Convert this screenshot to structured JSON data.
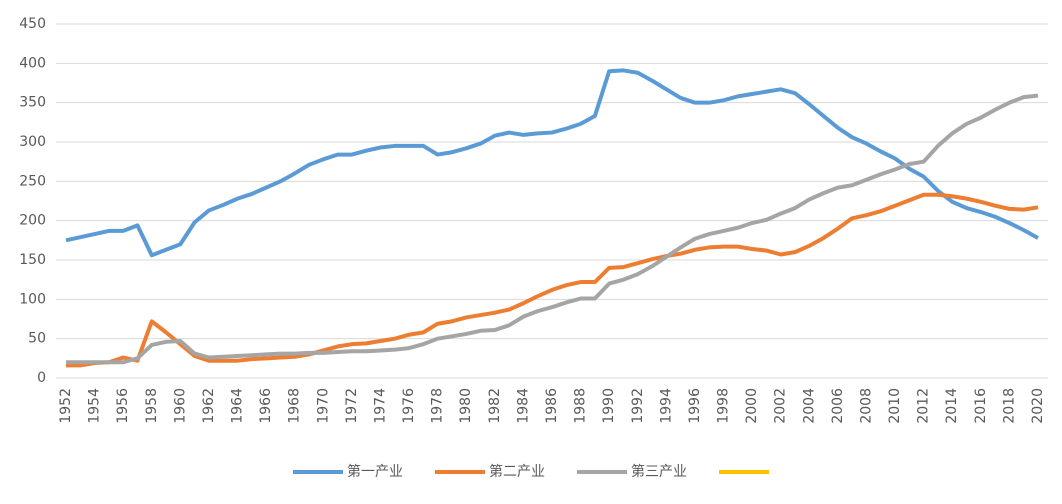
{
  "chart_data": {
    "type": "line",
    "x": [
      1952,
      1953,
      1954,
      1955,
      1956,
      1957,
      1958,
      1959,
      1960,
      1961,
      1962,
      1963,
      1964,
      1965,
      1966,
      1967,
      1968,
      1969,
      1970,
      1971,
      1972,
      1973,
      1974,
      1975,
      1976,
      1977,
      1978,
      1979,
      1980,
      1981,
      1982,
      1983,
      1984,
      1985,
      1986,
      1987,
      1988,
      1989,
      1990,
      1991,
      1992,
      1993,
      1994,
      1995,
      1996,
      1997,
      1998,
      1999,
      2000,
      2001,
      2002,
      2003,
      2004,
      2005,
      2006,
      2007,
      2008,
      2009,
      2010,
      2011,
      2012,
      2013,
      2014,
      2015,
      2016,
      2017,
      2018,
      2019,
      2020
    ],
    "xlim": [
      1952,
      2020
    ],
    "xticks": [
      1952,
      1954,
      1956,
      1958,
      1960,
      1962,
      1964,
      1966,
      1968,
      1970,
      1972,
      1974,
      1976,
      1978,
      1980,
      1982,
      1984,
      1986,
      1988,
      1990,
      1992,
      1994,
      1996,
      1998,
      2000,
      2002,
      2004,
      2006,
      2008,
      2010,
      2012,
      2014,
      2016,
      2018,
      2020
    ],
    "ylim": [
      0,
      450
    ],
    "yticks": [
      0,
      50,
      100,
      150,
      200,
      250,
      300,
      350,
      400,
      450
    ],
    "grid": true,
    "legend": "bottom",
    "series": [
      {
        "name": "第一产业",
        "color": "#5b9bd5",
        "values": [
          175,
          179,
          183,
          187,
          187,
          194,
          156,
          163,
          170,
          198,
          213,
          220,
          228,
          234,
          242,
          250,
          260,
          271,
          278,
          284,
          284,
          289,
          293,
          295,
          295,
          295,
          284,
          287,
          292,
          298,
          308,
          312,
          309,
          311,
          312,
          317,
          323,
          333,
          390,
          391,
          388,
          378,
          367,
          356,
          350,
          350,
          353,
          358,
          361,
          364,
          367,
          362,
          348,
          333,
          318,
          306,
          298,
          288,
          279,
          266,
          256,
          238,
          224,
          216,
          211,
          205,
          197,
          188,
          178
        ]
      },
      {
        "name": "第二产业",
        "color": "#ed7d31",
        "values": [
          16,
          16,
          19,
          20,
          26,
          22,
          72,
          58,
          43,
          28,
          22,
          22,
          22,
          24,
          25,
          26,
          27,
          30,
          35,
          40,
          43,
          44,
          47,
          50,
          55,
          58,
          69,
          72,
          77,
          80,
          83,
          87,
          95,
          104,
          112,
          118,
          122,
          122,
          140,
          141,
          146,
          151,
          155,
          158,
          163,
          166,
          167,
          167,
          164,
          162,
          157,
          160,
          168,
          178,
          190,
          203,
          207,
          212,
          219,
          226,
          233,
          233,
          231,
          228,
          224,
          219,
          215,
          214,
          217
        ]
      },
      {
        "name": "第三产业",
        "color": "#a5a5a5",
        "values": [
          20,
          20,
          20,
          20,
          20,
          25,
          42,
          46,
          47,
          31,
          26,
          27,
          28,
          29,
          30,
          31,
          31,
          32,
          32,
          33,
          34,
          34,
          35,
          36,
          38,
          43,
          50,
          53,
          56,
          60,
          61,
          67,
          78,
          85,
          90,
          96,
          101,
          101,
          120,
          125,
          132,
          142,
          154,
          166,
          177,
          183,
          187,
          191,
          197,
          201,
          209,
          216,
          227,
          235,
          242,
          245,
          252,
          259,
          265,
          272,
          275,
          295,
          311,
          323,
          331,
          341,
          350,
          357,
          359
        ]
      },
      {
        "name": null,
        "color": "#ffc000",
        "values": [
          null,
          null,
          null,
          null,
          null,
          null,
          null,
          null,
          null,
          null,
          null,
          null,
          null,
          null,
          null,
          null,
          null,
          null,
          null,
          null,
          null,
          null,
          null,
          null,
          null,
          null,
          null,
          null,
          null,
          null,
          null,
          null,
          null,
          null,
          null,
          null,
          null,
          null,
          null,
          null,
          null,
          null,
          null,
          null,
          null,
          null,
          null,
          null,
          null,
          null,
          null,
          null,
          null,
          null,
          null,
          null,
          null,
          null,
          null,
          null,
          null,
          null,
          null,
          null,
          null,
          null,
          null,
          null,
          null
        ]
      }
    ]
  }
}
